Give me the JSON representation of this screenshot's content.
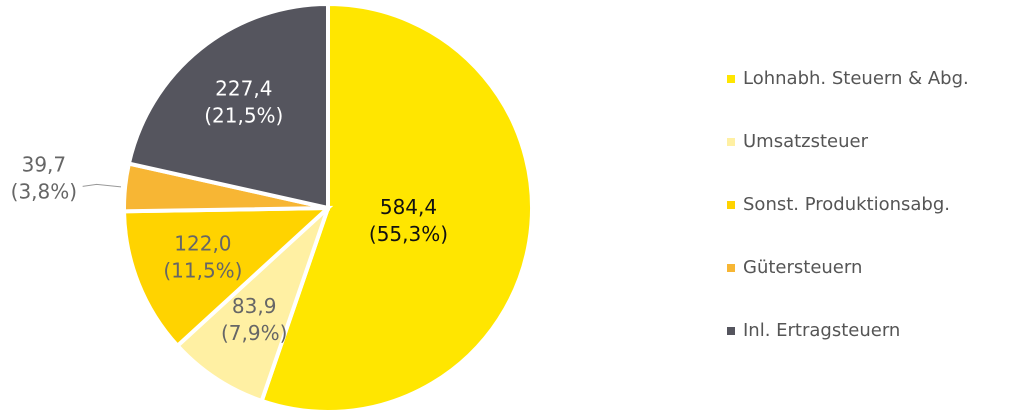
{
  "chart_data": {
    "type": "pie",
    "categories": [
      "Lohnabh. Steuern & Abg.",
      "Umsatzsteuer",
      "Sonst. Produktionsabg.",
      "Gütersteuern",
      "Inl. Ertragsteuern"
    ],
    "values": [
      584.4,
      83.9,
      122.0,
      39.7,
      227.4
    ],
    "value_labels": [
      "584,4",
      "83,9",
      "122,0",
      "39,7",
      "227,4"
    ],
    "percentage_labels": [
      "(55,3%)",
      "(7,9%)",
      "(11,5%)",
      "(3,8%)",
      "(21,5%)"
    ],
    "colors": [
      "#ffe600",
      "#fff0a3",
      "#ffd300",
      "#f7b634",
      "#55555e"
    ],
    "label_colors": [
      "#111111",
      "#666666",
      "#666666",
      "#666666",
      "#ffffff"
    ],
    "legend": "right"
  }
}
